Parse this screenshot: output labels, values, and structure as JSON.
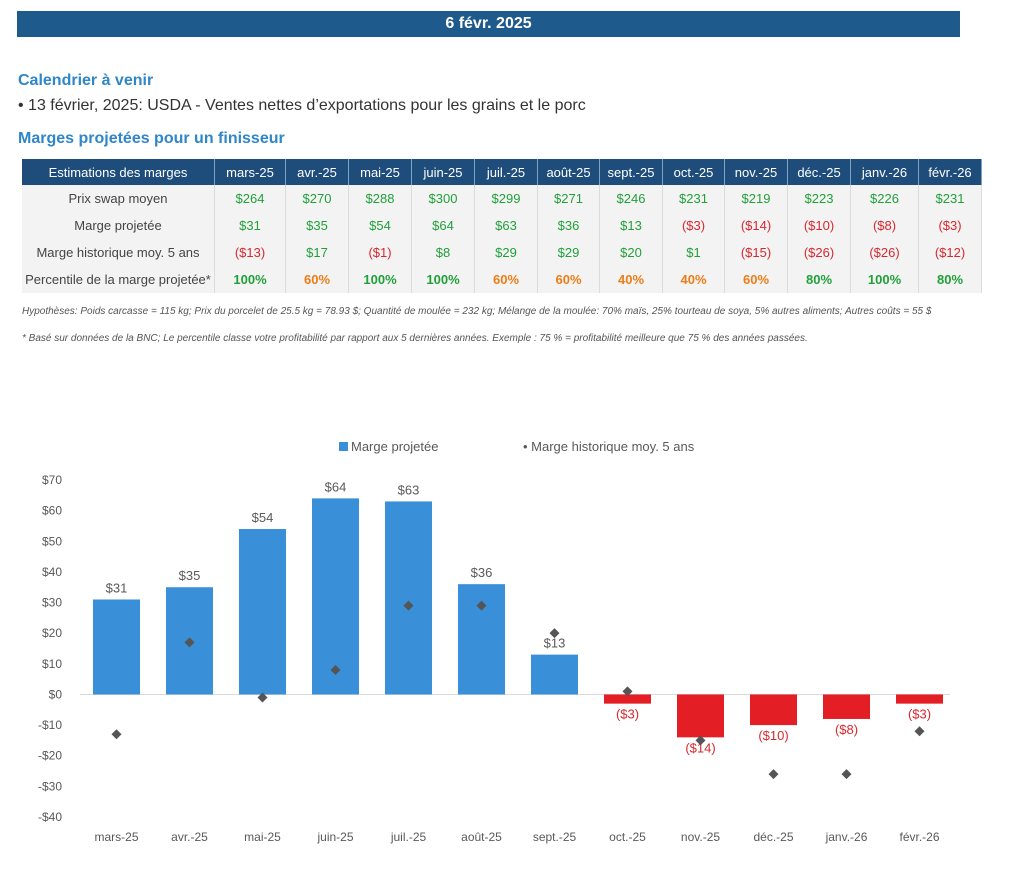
{
  "header": {
    "date": "6 févr. 2025"
  },
  "calendar": {
    "title": "Calendrier à venir",
    "item": "• 13 février, 2025: USDA - Ventes nettes d’exportations pour les grains et le porc"
  },
  "margins": {
    "title": "Marges projetées pour un finisseur",
    "table": {
      "header_label": "Estimations des marges",
      "months": [
        "mars-25",
        "avr.-25",
        "mai-25",
        "juin-25",
        "juil.-25",
        "août-25",
        "sept.-25",
        "oct.-25",
        "nov.-25",
        "déc.-25",
        "janv.-26",
        "févr.-26"
      ],
      "rows": [
        {
          "label": "Prix swap moyen",
          "cells": [
            [
              "$264",
              "pos"
            ],
            [
              "$270",
              "pos"
            ],
            [
              "$288",
              "pos"
            ],
            [
              "$300",
              "pos"
            ],
            [
              "$299",
              "pos"
            ],
            [
              "$271",
              "pos"
            ],
            [
              "$246",
              "pos"
            ],
            [
              "$231",
              "pos"
            ],
            [
              "$219",
              "pos"
            ],
            [
              "$223",
              "pos"
            ],
            [
              "$226",
              "pos"
            ],
            [
              "$231",
              "pos"
            ]
          ]
        },
        {
          "label": "Marge projetée",
          "cells": [
            [
              "$31",
              "pos"
            ],
            [
              "$35",
              "pos"
            ],
            [
              "$54",
              "pos"
            ],
            [
              "$64",
              "pos"
            ],
            [
              "$63",
              "pos"
            ],
            [
              "$36",
              "pos"
            ],
            [
              "$13",
              "pos"
            ],
            [
              "($3)",
              "neg"
            ],
            [
              "($14)",
              "neg"
            ],
            [
              "($10)",
              "neg"
            ],
            [
              "($8)",
              "neg"
            ],
            [
              "($3)",
              "neg"
            ]
          ]
        },
        {
          "label": "Marge historique moy. 5 ans",
          "cells": [
            [
              "($13)",
              "neg"
            ],
            [
              "$17",
              "pos"
            ],
            [
              "($1)",
              "neg"
            ],
            [
              "$8",
              "pos"
            ],
            [
              "$29",
              "pos"
            ],
            [
              "$29",
              "pos"
            ],
            [
              "$20",
              "pos"
            ],
            [
              "$1",
              "pos"
            ],
            [
              "($15)",
              "neg"
            ],
            [
              "($26)",
              "neg"
            ],
            [
              "($26)",
              "neg"
            ],
            [
              "($12)",
              "neg"
            ]
          ]
        },
        {
          "label": "Percentile de la marge projetée*",
          "cells": [
            [
              "100%",
              "pos pb"
            ],
            [
              "60%",
              "org pb"
            ],
            [
              "100%",
              "pos pb"
            ],
            [
              "100%",
              "pos pb"
            ],
            [
              "60%",
              "org pb"
            ],
            [
              "60%",
              "org pb"
            ],
            [
              "40%",
              "org pb"
            ],
            [
              "40%",
              "org pb"
            ],
            [
              "60%",
              "org pb"
            ],
            [
              "80%",
              "pos pb"
            ],
            [
              "100%",
              "pos pb"
            ],
            [
              "80%",
              "pos pb"
            ]
          ]
        }
      ]
    },
    "note_hypotheses": "Hypothèses: Poids carcasse = 115 kg; Prix du porcelet de 25.5 kg = 78.93 $; Quantité de moulée = 232 kg; Mélange de la moulée: 70% maïs, 25% tourteau de soya, 5% autres aliments; Autres coûts = 55 $",
    "note_percentile": "* Basé sur données de la BNC; Le percentile classe votre profitabilité par rapport aux 5 dernières années. Exemple : 75 % = profitabilité meilleure que 75 % des années passées."
  },
  "colors": {
    "banner": "#1f5a8c",
    "heading": "#2f86c8",
    "positive_bar": "#3a8fd9",
    "negative_bar": "#e31e24",
    "marker": "#555555"
  },
  "chart_data": {
    "type": "bar",
    "categories": [
      "mars-25",
      "avr.-25",
      "mai-25",
      "juin-25",
      "juil.-25",
      "août-25",
      "sept.-25",
      "oct.-25",
      "nov.-25",
      "déc.-25",
      "janv.-26",
      "févr.-26"
    ],
    "series": [
      {
        "name": "Marge projetée",
        "type": "bar",
        "values": [
          31,
          35,
          54,
          64,
          63,
          36,
          13,
          -3,
          -14,
          -10,
          -8,
          -3
        ],
        "labels": [
          "$31",
          "$35",
          "$54",
          "$64",
          "$63",
          "$36",
          "$13",
          "($3)",
          "($14)",
          "($10)",
          "($8)",
          "($3)"
        ]
      },
      {
        "name": "Marge historique moy. 5 ans",
        "type": "scatter",
        "values": [
          -13,
          17,
          -1,
          8,
          29,
          29,
          20,
          1,
          -15,
          -26,
          -26,
          -12
        ]
      }
    ],
    "ylim": [
      -40,
      70
    ],
    "yticks": [
      70,
      60,
      50,
      40,
      30,
      20,
      10,
      0,
      -10,
      -20,
      -30,
      -40
    ],
    "ytick_labels": [
      "$70",
      "$60",
      "$50",
      "$40",
      "$30",
      "$20",
      "$10",
      "$0",
      "-$10",
      "-$20",
      "-$30",
      "-$40"
    ],
    "legend": [
      "Marge projetée",
      "• Marge historique moy. 5 ans"
    ],
    "legend_position": "top-center",
    "grid": false
  }
}
